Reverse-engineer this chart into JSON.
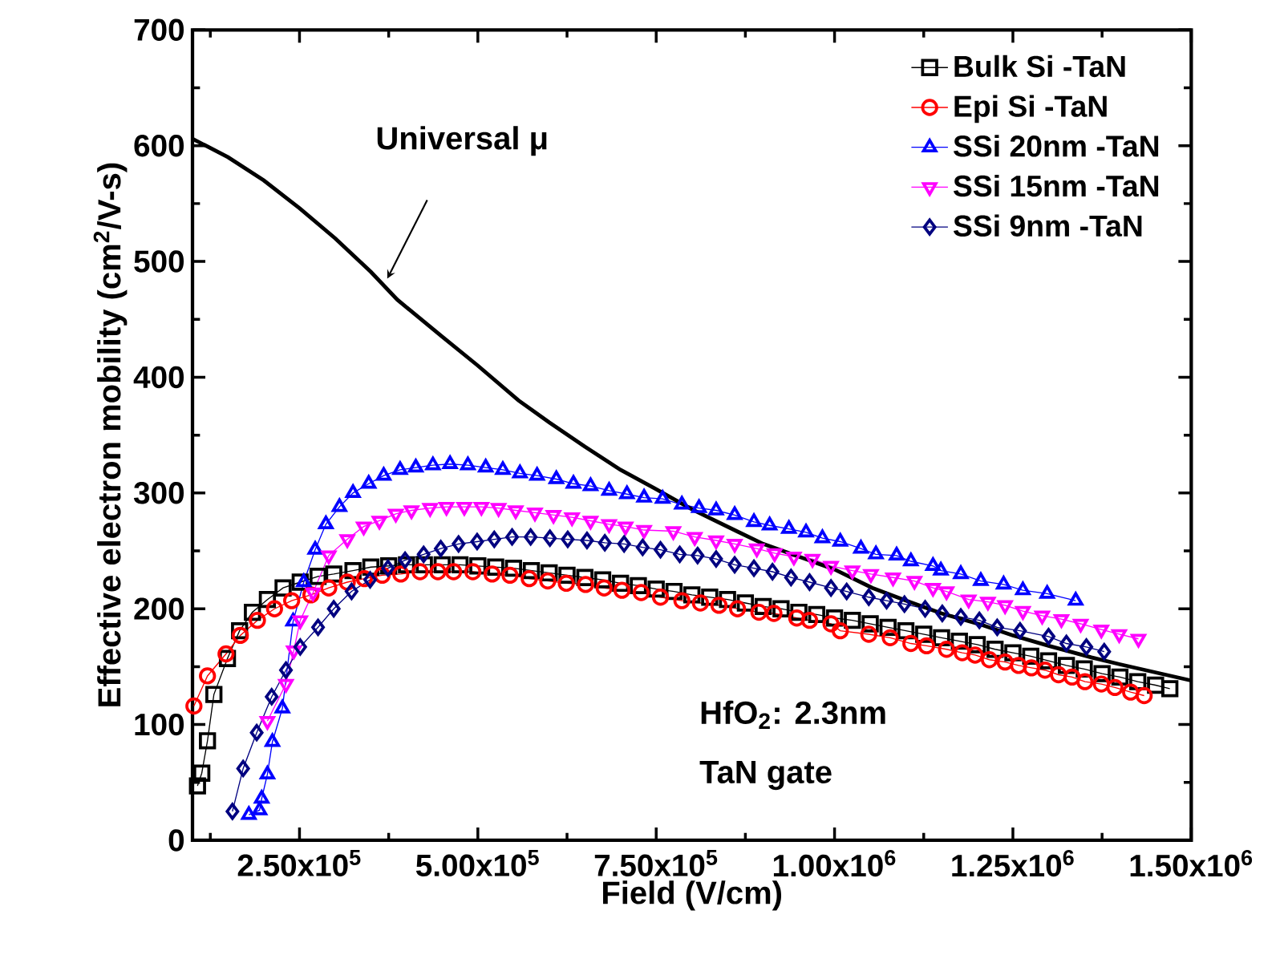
{
  "chart_data": {
    "type": "line",
    "xlabel": "Field (V/cm)",
    "ylabel": "Effective electron mobility (cm$^{2}$/V-s)",
    "xlim": [
      100000,
      1500000
    ],
    "ylim": [
      0,
      700
    ],
    "xticks": [
      {
        "value": 125000,
        "label": null
      },
      {
        "value": 250000,
        "label": "2.50x10$^{5}$"
      },
      {
        "value": 375000,
        "label": null
      },
      {
        "value": 500000,
        "label": "5.00x10$^{5}$"
      },
      {
        "value": 625000,
        "label": null
      },
      {
        "value": 750000,
        "label": "7.50x10$^{5}$"
      },
      {
        "value": 875000,
        "label": null
      },
      {
        "value": 1000000,
        "label": "1.00x10$^{6}$"
      },
      {
        "value": 1125000,
        "label": null
      },
      {
        "value": 1250000,
        "label": "1.25x10$^{6}$"
      },
      {
        "value": 1375000,
        "label": null
      },
      {
        "value": 1500000,
        "label": "1.50x10$^{6}$"
      }
    ],
    "yticks": [
      0,
      {
        "value": 50,
        "label": null
      },
      100,
      {
        "value": 150,
        "label": null
      },
      200,
      {
        "value": 250,
        "label": null
      },
      300,
      {
        "value": 350,
        "label": null
      },
      400,
      {
        "value": 450,
        "label": null
      },
      500,
      {
        "value": 550,
        "label": null
      },
      600,
      {
        "value": 650,
        "label": null
      },
      700
    ],
    "grid": false,
    "legend": "top right",
    "line_style": "solid",
    "series": [
      {
        "name": "Bulk Si -TaN",
        "color": "#000000",
        "marker": "square",
        "x": [
          107000,
          113000,
          121000,
          130000,
          149000,
          166000,
          184000,
          205000,
          227000,
          251000,
          276000,
          298000,
          325000,
          350000,
          375000,
          400000,
          425000,
          450000,
          475000,
          500000,
          525000,
          550000,
          575000,
          600000,
          625000,
          650000,
          675000,
          700000,
          725000,
          750000,
          775000,
          800000,
          825000,
          850000,
          875000,
          900000,
          925000,
          950000,
          975000,
          1000000,
          1025000,
          1050000,
          1075000,
          1100000,
          1125000,
          1150000,
          1175000,
          1200000,
          1225000,
          1250000,
          1275000,
          1300000,
          1325000,
          1350000,
          1375000,
          1400000,
          1425000,
          1450000,
          1470000
        ],
        "values": [
          47,
          58,
          86,
          126,
          157,
          181,
          197,
          208,
          218,
          223,
          228,
          230,
          233,
          236,
          237,
          238,
          238,
          238,
          238,
          237,
          236,
          235,
          233,
          231,
          229,
          227,
          225,
          222,
          220,
          217,
          215,
          212,
          210,
          208,
          205,
          202,
          200,
          197,
          195,
          192,
          190,
          187,
          184,
          181,
          178,
          175,
          172,
          169,
          165,
          162,
          159,
          155,
          151,
          148,
          144,
          141,
          137,
          134,
          131
        ]
      },
      {
        "name": "Epi Si -TaN",
        "color": "#ff0000",
        "marker": "circle",
        "x": [
          102000,
          121000,
          147000,
          167000,
          191000,
          215000,
          239000,
          266000,
          291000,
          317000,
          341000,
          366000,
          392000,
          419000,
          444000,
          466000,
          493000,
          520000,
          545000,
          572000,
          598000,
          624000,
          651000,
          677000,
          702000,
          729000,
          756000,
          786000,
          812000,
          838000,
          864000,
          894000,
          915000,
          947000,
          965000,
          995000,
          1008000,
          1048000,
          1078000,
          1107000,
          1129000,
          1157000,
          1179000,
          1197000,
          1217000,
          1239000,
          1258000,
          1276000,
          1295000,
          1314000,
          1333000,
          1351000,
          1374000,
          1393000,
          1415000,
          1434000
        ],
        "values": [
          116,
          142,
          161,
          177,
          190,
          200,
          207,
          212,
          218,
          223,
          226,
          229,
          230,
          232,
          232,
          232,
          232,
          230,
          229,
          226,
          224,
          222,
          221,
          218,
          216,
          214,
          210,
          207,
          205,
          203,
          200,
          197,
          196,
          192,
          190,
          187,
          181,
          178,
          175,
          170,
          168,
          165,
          162,
          160,
          156,
          154,
          151,
          149,
          147,
          143,
          141,
          137,
          135,
          132,
          128,
          125
        ]
      },
      {
        "name": "SSi 20nm -TaN",
        "color": "#0000ff",
        "marker": "triangle",
        "x": [
          179000,
          194000,
          197000,
          205000,
          212000,
          226000,
          241000,
          256000,
          272000,
          287000,
          306000,
          325000,
          347000,
          368000,
          391000,
          413000,
          437000,
          461000,
          486000,
          511000,
          535000,
          559000,
          583000,
          610000,
          634000,
          658000,
          684000,
          709000,
          733000,
          759000,
          786000,
          810000,
          834000,
          860000,
          887000,
          909000,
          936000,
          960000,
          983000,
          1008000,
          1037000,
          1058000,
          1087000,
          1107000,
          1138000,
          1149000,
          1177000,
          1205000,
          1237000,
          1264000,
          1298000,
          1338000
        ],
        "values": [
          22,
          26,
          36,
          57,
          85,
          114,
          189,
          223,
          251,
          273,
          288,
          300,
          308,
          315,
          320,
          322,
          324,
          325,
          324,
          322,
          320,
          317,
          315,
          312,
          308,
          306,
          302,
          299,
          296,
          295,
          290,
          287,
          285,
          281,
          275,
          272,
          269,
          266,
          261,
          258,
          252,
          247,
          246,
          241,
          237,
          233,
          230,
          224,
          221,
          216,
          213,
          207
        ]
      },
      {
        "name": "SSi 15nm -TaN",
        "color": "#ff00ff",
        "marker": "triangle-down",
        "x": [
          205000,
          231000,
          242000,
          251000,
          269000,
          291000,
          317000,
          340000,
          362000,
          385000,
          407000,
          433000,
          456000,
          481000,
          505000,
          529000,
          553000,
          580000,
          606000,
          632000,
          658000,
          684000,
          707000,
          733000,
          774000,
          804000,
          834000,
          860000,
          891000,
          916000,
          943000,
          969000,
          995000,
          1025000,
          1051000,
          1082000,
          1112000,
          1138000,
          1157000,
          1188000,
          1215000,
          1239000,
          1264000,
          1291000,
          1318000,
          1345000,
          1374000,
          1399000,
          1426000
        ],
        "values": [
          103,
          135,
          164,
          190,
          214,
          246,
          260,
          271,
          276,
          282,
          285,
          287,
          288,
          288,
          288,
          287,
          285,
          283,
          281,
          279,
          276,
          273,
          271,
          268,
          267,
          262,
          259,
          256,
          252,
          248,
          245,
          243,
          237,
          233,
          230,
          227,
          224,
          218,
          215,
          208,
          206,
          203,
          198,
          194,
          191,
          187,
          182,
          178,
          174
        ]
      },
      {
        "name": "SSi 9nm -TaN",
        "color": "#000080",
        "marker": "diamond",
        "x": [
          156000,
          171000,
          190000,
          211000,
          231000,
          251000,
          276000,
          298000,
          323000,
          349000,
          374000,
          398000,
          424000,
          448000,
          473000,
          499000,
          523000,
          548000,
          574000,
          601000,
          626000,
          653000,
          678000,
          705000,
          731000,
          756000,
          783000,
          808000,
          834000,
          860000,
          887000,
          913000,
          939000,
          965000,
          995000,
          1017000,
          1048000,
          1073000,
          1098000,
          1127000,
          1151000,
          1177000,
          1203000,
          1228000,
          1260000,
          1300000,
          1325000,
          1353000,
          1378000
        ],
        "values": [
          25,
          62,
          93,
          124,
          147,
          167,
          184,
          200,
          215,
          225,
          235,
          242,
          247,
          252,
          256,
          258,
          260,
          262,
          262,
          261,
          260,
          259,
          257,
          256,
          253,
          251,
          247,
          246,
          243,
          238,
          235,
          232,
          227,
          223,
          218,
          215,
          210,
          207,
          204,
          200,
          196,
          193,
          190,
          184,
          181,
          176,
          170,
          167,
          163
        ]
      },
      {
        "type": "line",
        "color": "#000000",
        "marker": "none",
        "x": [
          100000,
          150000,
          200000,
          250000,
          300000,
          350000,
          387000,
          450000,
          500000,
          557000,
          600000,
          650000,
          700000,
          748000,
          800000,
          863000,
          900000,
          950000,
          1000000,
          1053000,
          1100000,
          1150000,
          1207000,
          1250000,
          1300000,
          1360000,
          1400000,
          1450000,
          1500000
        ],
        "values": [
          606,
          590,
          570,
          546,
          520,
          491,
          467,
          435,
          410,
          380,
          361,
          340,
          320,
          304,
          286,
          267,
          256,
          245,
          234,
          218,
          207,
          196,
          186,
          177,
          168,
          158,
          152,
          145,
          138
        ]
      }
    ],
    "annotations": [
      "Universal μ",
      "HfO$_{2}$: 2.3nm",
      "TaN gate"
    ]
  }
}
